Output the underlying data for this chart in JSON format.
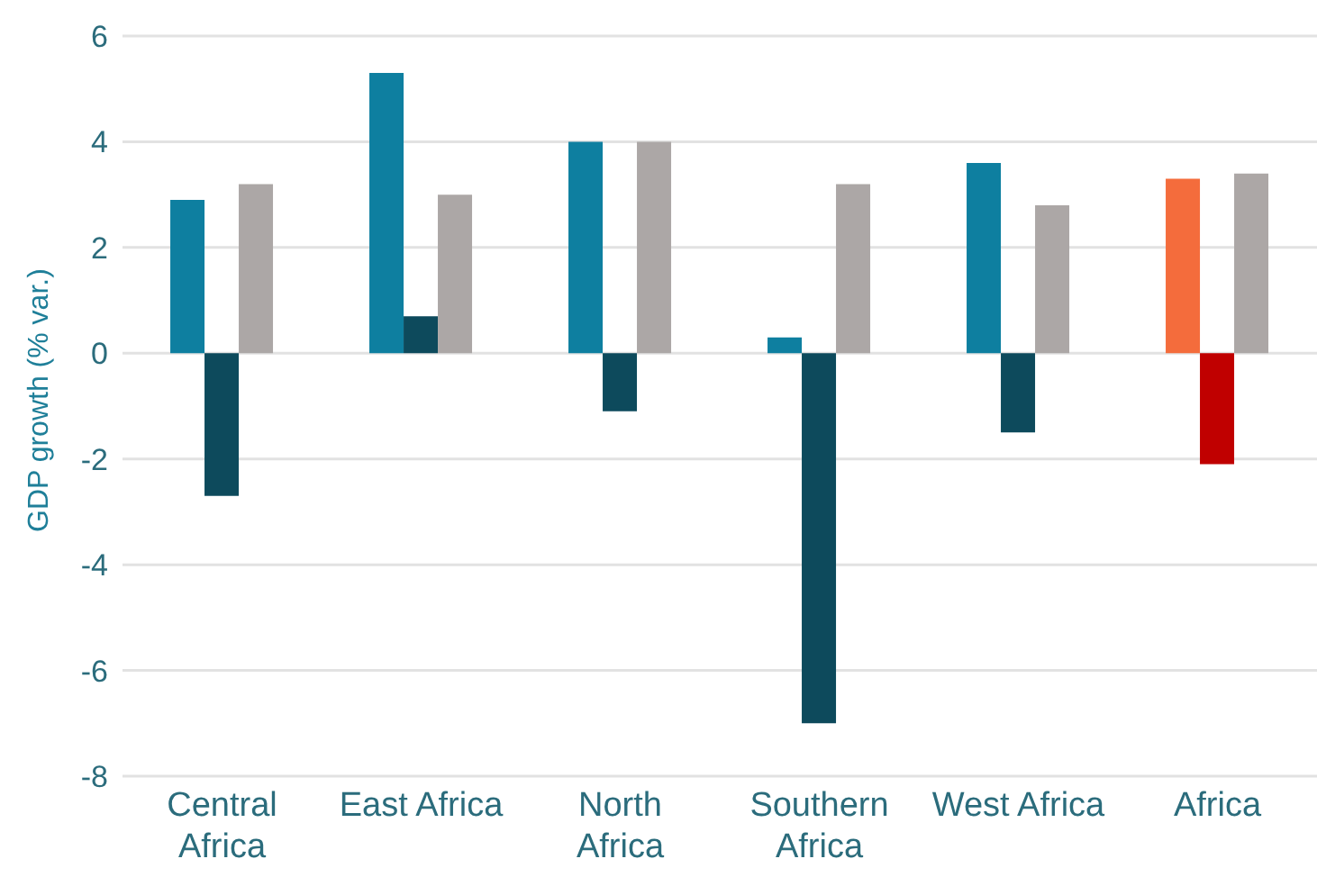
{
  "chart_data": {
    "type": "bar",
    "ylabel": "GDP growth (% var.)",
    "categories": [
      "Central Africa",
      "East Africa",
      "North Africa",
      "Southern Africa",
      "West Africa",
      "Africa"
    ],
    "series": [
      {
        "color": "#0e7fa0",
        "colors": [
          "#0e7fa0",
          "#0e7fa0",
          "#0e7fa0",
          "#0e7fa0",
          "#0e7fa0",
          "#f46c3c"
        ],
        "values": [
          2.9,
          5.3,
          4.0,
          0.3,
          3.6,
          3.3
        ]
      },
      {
        "color": "#0d4a5c",
        "colors": [
          "#0d4a5c",
          "#0d4a5c",
          "#0d4a5c",
          "#0d4a5c",
          "#0d4a5c",
          "#c00000"
        ],
        "values": [
          -2.7,
          0.7,
          -1.1,
          -7.0,
          -1.5,
          -2.1
        ]
      },
      {
        "color": "#aca7a6",
        "values": [
          3.2,
          3.0,
          4.0,
          3.2,
          2.8,
          3.4
        ]
      }
    ],
    "ylim": [
      -8,
      6
    ],
    "yticks": [
      -8,
      -6,
      -4,
      -2,
      0,
      2,
      4,
      6
    ],
    "grid": "y",
    "legend": false
  }
}
